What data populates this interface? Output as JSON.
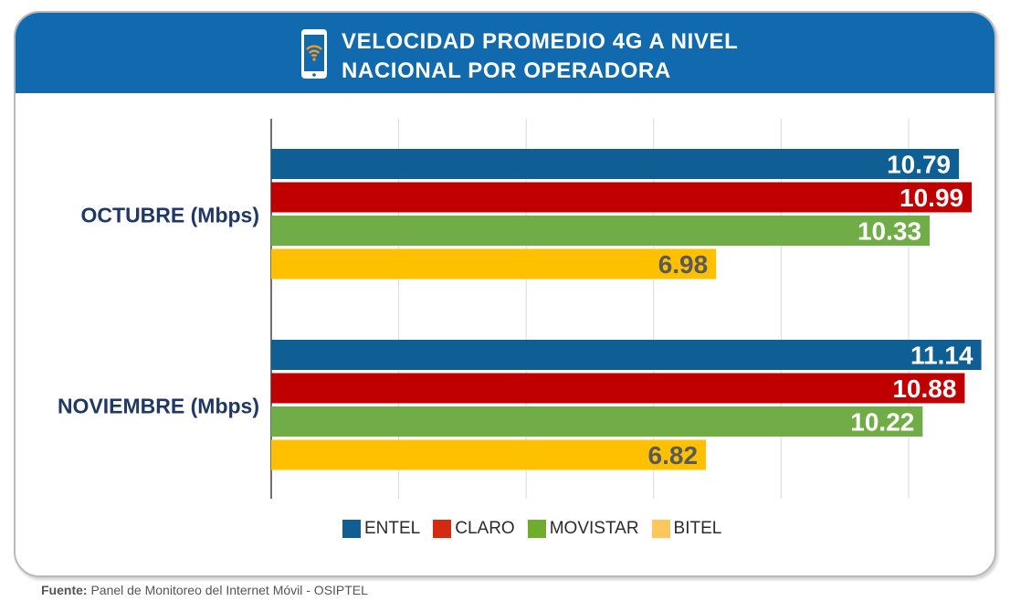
{
  "header": {
    "title_line1": "VELOCIDAD PROMEDIO 4G A NIVEL",
    "title_line2": "NACIONAL POR OPERADORA",
    "icon": "smartphone-wifi-icon"
  },
  "chart_data": {
    "type": "bar",
    "orientation": "horizontal",
    "title": "VELOCIDAD PROMEDIO 4G A NIVEL NACIONAL POR OPERADORA",
    "categories": [
      "OCTUBRE (Mbps)",
      "NOVIEMBRE (Mbps)"
    ],
    "series": [
      {
        "name": "ENTEL",
        "color": "#0f5e94",
        "values": [
          10.79,
          11.14
        ],
        "label_color": "#ffffff"
      },
      {
        "name": "CLARO",
        "color": "#c00000",
        "values": [
          10.99,
          10.88
        ],
        "label_color": "#ffffff"
      },
      {
        "name": "MOVISTAR",
        "color": "#70ad47",
        "values": [
          10.33,
          10.22
        ],
        "label_color": "#ffffff"
      },
      {
        "name": "BITEL",
        "color": "#ffc000",
        "values": [
          6.98,
          6.82
        ],
        "label_color": "#595959"
      }
    ],
    "xlim": [
      0,
      12
    ],
    "grid": true,
    "legend": "bottom"
  },
  "colors": {
    "header_bg": "#116aae",
    "category_label": "#1f3864",
    "grid": "#d9d9d9"
  },
  "footer": {
    "label": "Fuente:",
    "text": " Panel de Monitoreo del Internet Móvil - OSIPTEL"
  }
}
